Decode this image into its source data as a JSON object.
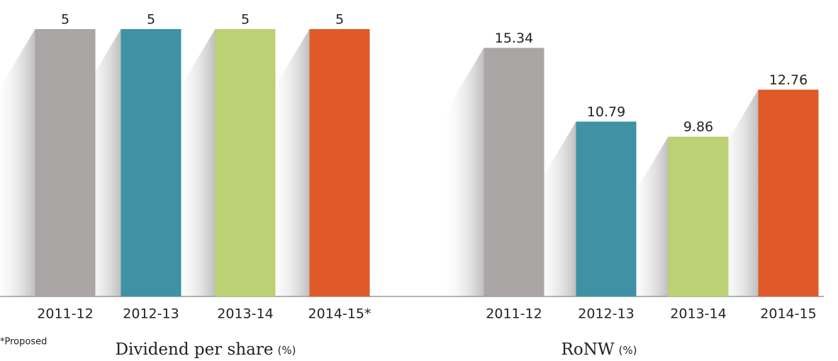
{
  "footnote": "*Proposed",
  "chart_data": [
    {
      "type": "bar",
      "title": "Dividend per share",
      "title_unit": "(%)",
      "categories": [
        "2011-12",
        "2012-13",
        "2013-14",
        "2014-15*"
      ],
      "values": [
        5,
        5,
        5,
        5
      ],
      "colors": [
        "#aaa6a5",
        "#3f91a4",
        "#bcd173",
        "#df5a28"
      ],
      "ylim": [
        0,
        5
      ]
    },
    {
      "type": "bar",
      "title": "RoNW",
      "title_unit": "(%)",
      "categories": [
        "2011-12",
        "2012-13",
        "2013-14",
        "2014-15"
      ],
      "values": [
        15.34,
        10.79,
        9.86,
        12.76
      ],
      "colors": [
        "#aaa6a5",
        "#3f91a4",
        "#bcd173",
        "#df5a28"
      ],
      "ylim": [
        0,
        16.5
      ]
    }
  ]
}
